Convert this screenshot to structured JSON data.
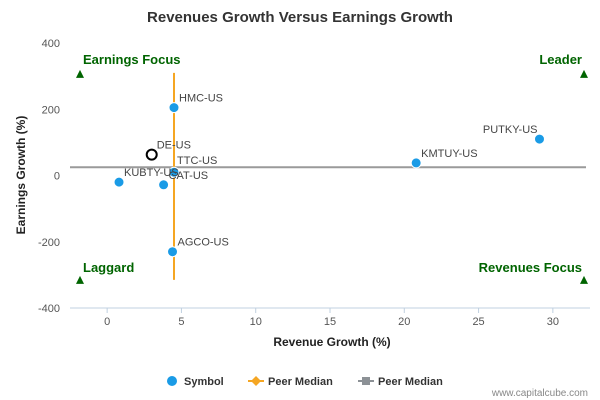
{
  "chart_data": {
    "type": "scatter",
    "title": "Revenues Growth Versus Earnings Growth",
    "xlabel": "Revenue Growth (%)",
    "ylabel": "Earnings Growth (%)",
    "xlim": [
      -2.5,
      32.5
    ],
    "ylim": [
      -400,
      400
    ],
    "x_ticks": [
      0,
      5,
      10,
      15,
      20,
      25,
      30
    ],
    "y_ticks": [
      -400,
      -200,
      0,
      200,
      400
    ],
    "grid": false,
    "legend_position": "bottom",
    "quadrants": {
      "top_left": "Earnings Focus",
      "top_right": "Leader",
      "bottom_left": "Laggard",
      "bottom_right": "Revenues Focus"
    },
    "points": [
      {
        "label": "HMC-US",
        "x": 4.5,
        "y": 205,
        "highlight": false
      },
      {
        "label": "DE-US",
        "x": 3.0,
        "y": 63,
        "highlight": true
      },
      {
        "label": "TTC-US",
        "x": 4.5,
        "y": 10,
        "highlight": false
      },
      {
        "label": "KUBTY-US",
        "x": 0.8,
        "y": -20,
        "highlight": false
      },
      {
        "label": "CAT-US",
        "x": 3.8,
        "y": -28,
        "highlight": false
      },
      {
        "label": "AGCO-US",
        "x": 4.4,
        "y": -230,
        "highlight": false
      },
      {
        "label": "KMTUY-US",
        "x": 20.8,
        "y": 38,
        "highlight": false
      },
      {
        "label": "PUTKY-US",
        "x": 29.1,
        "y": 110,
        "highlight": false
      }
    ],
    "peer_median_x": 4.5,
    "peer_median_y": 25,
    "legend": [
      {
        "label": "Symbol",
        "kind": "circle",
        "color": "#1a9be6"
      },
      {
        "label": "Peer Median",
        "kind": "diamond-line",
        "color": "#f5a623"
      },
      {
        "label": "Peer Median",
        "kind": "square-line",
        "color": "#8c9196"
      }
    ],
    "colors": {
      "point": "#1a9be6",
      "median_x_line": "#f5a623",
      "median_y_line": "#9a9a9a",
      "quadrant_label": "#006400",
      "highlight_stroke": "#000000"
    }
  },
  "watermark": "www.capitalcube.com"
}
